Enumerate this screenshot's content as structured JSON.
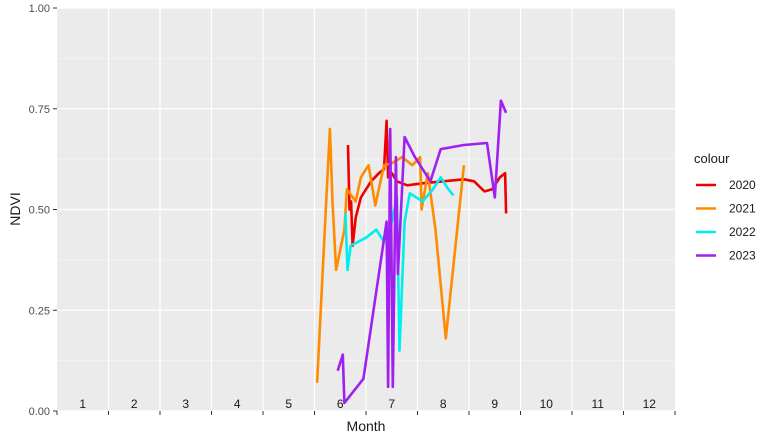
{
  "chart_data": {
    "type": "line",
    "xlabel": "Month",
    "ylabel": "NDVI",
    "xlim": [
      0.5,
      12.5
    ],
    "ylim": [
      0,
      1
    ],
    "y_ticks": [
      "0.00",
      "0.25",
      "0.50",
      "0.75",
      "1.00"
    ],
    "y_tick_values": [
      0,
      0.25,
      0.5,
      0.75,
      1
    ],
    "month_labels": [
      "1",
      "2",
      "3",
      "4",
      "5",
      "6",
      "7",
      "8",
      "9",
      "10",
      "11",
      "12"
    ],
    "grid": true,
    "legend_title": "colour",
    "legend_position": "right",
    "series": [
      {
        "name": "2020",
        "color": "#ee0000",
        "points": [
          [
            6.15,
            0.66
          ],
          [
            6.18,
            0.5
          ],
          [
            6.21,
            0.52
          ],
          [
            6.24,
            0.41
          ],
          [
            6.3,
            0.48
          ],
          [
            6.4,
            0.53
          ],
          [
            6.5,
            0.55
          ],
          [
            6.6,
            0.57
          ],
          [
            6.75,
            0.59
          ],
          [
            6.85,
            0.6
          ],
          [
            6.9,
            0.72
          ],
          [
            6.93,
            0.58
          ],
          [
            7.0,
            0.59
          ],
          [
            7.1,
            0.57
          ],
          [
            7.3,
            0.56
          ],
          [
            7.6,
            0.565
          ],
          [
            8.0,
            0.57
          ],
          [
            8.4,
            0.575
          ],
          [
            8.6,
            0.57
          ],
          [
            8.8,
            0.545
          ],
          [
            8.95,
            0.55
          ],
          [
            9.1,
            0.58
          ],
          [
            9.2,
            0.59
          ],
          [
            9.22,
            0.49
          ]
        ]
      },
      {
        "name": "2021",
        "color": "#ff8c00",
        "points": [
          [
            5.55,
            0.07
          ],
          [
            5.72,
            0.5
          ],
          [
            5.8,
            0.7
          ],
          [
            5.85,
            0.52
          ],
          [
            5.92,
            0.35
          ],
          [
            6.08,
            0.45
          ],
          [
            6.13,
            0.55
          ],
          [
            6.3,
            0.52
          ],
          [
            6.4,
            0.58
          ],
          [
            6.55,
            0.61
          ],
          [
            6.68,
            0.51
          ],
          [
            6.85,
            0.61
          ],
          [
            7.0,
            0.615
          ],
          [
            7.2,
            0.63
          ],
          [
            7.4,
            0.61
          ],
          [
            7.55,
            0.63
          ],
          [
            7.58,
            0.5
          ],
          [
            7.7,
            0.59
          ],
          [
            7.85,
            0.45
          ],
          [
            8.05,
            0.18
          ],
          [
            8.4,
            0.61
          ]
        ]
      },
      {
        "name": "2022",
        "color": "#00eeee",
        "points": [
          [
            6.1,
            0.49
          ],
          [
            6.14,
            0.35
          ],
          [
            6.2,
            0.41
          ],
          [
            6.5,
            0.43
          ],
          [
            6.7,
            0.45
          ],
          [
            6.85,
            0.42
          ],
          [
            7.0,
            0.47
          ],
          [
            7.1,
            0.53
          ],
          [
            7.15,
            0.15
          ],
          [
            7.25,
            0.47
          ],
          [
            7.35,
            0.54
          ],
          [
            7.6,
            0.52
          ],
          [
            7.8,
            0.55
          ],
          [
            7.95,
            0.58
          ],
          [
            8.1,
            0.55
          ],
          [
            8.2,
            0.535
          ]
        ]
      },
      {
        "name": "2023",
        "color": "#a020f0",
        "points": [
          [
            5.95,
            0.1
          ],
          [
            6.05,
            0.14
          ],
          [
            6.08,
            0.02
          ],
          [
            6.45,
            0.08
          ],
          [
            6.9,
            0.47
          ],
          [
            6.93,
            0.06
          ],
          [
            6.97,
            0.7
          ],
          [
            7.02,
            0.06
          ],
          [
            7.08,
            0.63
          ],
          [
            7.12,
            0.34
          ],
          [
            7.25,
            0.68
          ],
          [
            7.45,
            0.63
          ],
          [
            7.75,
            0.57
          ],
          [
            7.95,
            0.65
          ],
          [
            8.4,
            0.66
          ],
          [
            8.85,
            0.665
          ],
          [
            9.0,
            0.53
          ],
          [
            9.12,
            0.77
          ],
          [
            9.22,
            0.74
          ]
        ]
      }
    ]
  }
}
